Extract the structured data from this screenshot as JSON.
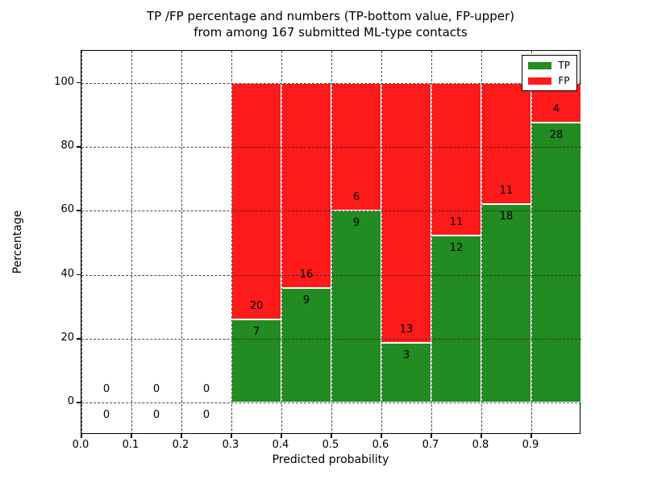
{
  "title": {
    "line1": "TP /FP percentage and numbers (TP-bottom value, FP-upper)",
    "line2": "from among 167 submitted ML-type contacts"
  },
  "legend": {
    "position": "upper right",
    "items": [
      {
        "label": "TP",
        "color": "#228b22"
      },
      {
        "label": "FP",
        "color": "#ff1a1a"
      }
    ]
  },
  "chart_data": {
    "type": "bar",
    "stacked": true,
    "normalized_to_percent": true,
    "title": "TP /FP percentage and numbers (TP-bottom value, FP-upper) from among 167 submitted ML-type contacts",
    "xlabel": "Predicted probability",
    "ylabel": "Percentage",
    "xlim": [
      0.0,
      1.0
    ],
    "ylim": [
      -10,
      110
    ],
    "grid": true,
    "x_ticks": [
      "0.0",
      "0.1",
      "0.2",
      "0.3",
      "0.4",
      "0.5",
      "0.6",
      "0.7",
      "0.8",
      "0.9"
    ],
    "y_ticks": [
      0,
      20,
      40,
      60,
      80,
      100
    ],
    "bin_width": 0.1,
    "total_contacts": 167,
    "categories": [
      "0.0-0.1",
      "0.1-0.2",
      "0.2-0.3",
      "0.3-0.4",
      "0.4-0.5",
      "0.5-0.6",
      "0.6-0.7",
      "0.7-0.8",
      "0.8-0.9",
      "0.9-1.0"
    ],
    "series": [
      {
        "name": "TP",
        "color": "#228b22",
        "counts": [
          0,
          0,
          0,
          7,
          9,
          9,
          3,
          12,
          18,
          28
        ]
      },
      {
        "name": "FP",
        "color": "#ff1a1a",
        "counts": [
          0,
          0,
          0,
          20,
          16,
          6,
          13,
          11,
          11,
          4
        ]
      }
    ]
  }
}
